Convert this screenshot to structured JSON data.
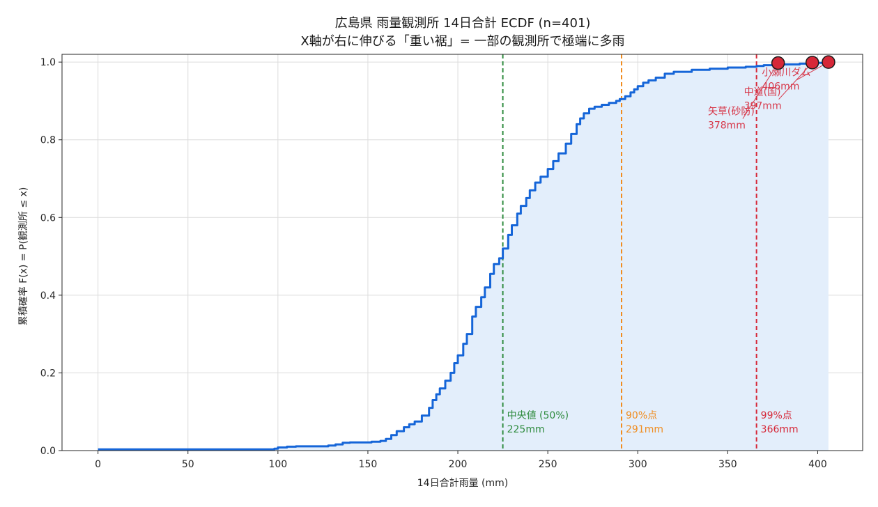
{
  "chart_data": {
    "type": "line",
    "title": "広島県 雨量観測所 14日合計 ECDF (n=401)",
    "subtitle": "X軸が右に伸びる「重い裾」= 一部の観測所で極端に多雨",
    "xlabel": "14日合計雨量 (mm)",
    "ylabel": "累積確率 F(x) = P(観測所 ≤ x)",
    "xlim": [
      -20,
      425
    ],
    "ylim": [
      0,
      1.02
    ],
    "x_ticks": [
      0,
      50,
      100,
      150,
      200,
      250,
      300,
      350,
      400
    ],
    "y_ticks": [
      0.0,
      0.2,
      0.4,
      0.6,
      0.8,
      1.0
    ],
    "x_tick_labels": [
      "0",
      "50",
      "100",
      "150",
      "200",
      "250",
      "300",
      "350",
      "400"
    ],
    "y_tick_labels": [
      "0.0",
      "0.2",
      "0.4",
      "0.6",
      "0.8",
      "1.0"
    ],
    "grid": true,
    "series": [
      {
        "color": "#1565d8",
        "fill_color": "#e3eefb",
        "x": [
          0,
          98,
          100,
          105,
          110,
          128,
          132,
          136,
          140,
          152,
          157,
          160,
          163,
          166,
          170,
          173,
          176,
          180,
          184,
          186,
          188,
          190,
          193,
          196,
          198,
          200,
          203,
          205,
          208,
          210,
          213,
          215,
          218,
          220,
          223,
          225,
          228,
          230,
          233,
          235,
          238,
          240,
          243,
          246,
          250,
          253,
          256,
          260,
          263,
          266,
          268,
          270,
          273,
          276,
          280,
          284,
          288,
          290,
          293,
          296,
          298,
          300,
          303,
          306,
          310,
          315,
          320,
          330,
          340,
          350,
          360,
          366,
          370,
          378,
          390,
          397,
          406
        ],
        "y": [
          0.003,
          0.005,
          0.008,
          0.01,
          0.011,
          0.013,
          0.016,
          0.02,
          0.021,
          0.023,
          0.025,
          0.03,
          0.04,
          0.05,
          0.06,
          0.068,
          0.075,
          0.09,
          0.11,
          0.13,
          0.145,
          0.16,
          0.18,
          0.2,
          0.225,
          0.245,
          0.275,
          0.3,
          0.345,
          0.37,
          0.395,
          0.42,
          0.455,
          0.48,
          0.495,
          0.52,
          0.555,
          0.58,
          0.61,
          0.63,
          0.65,
          0.67,
          0.69,
          0.705,
          0.725,
          0.745,
          0.765,
          0.79,
          0.815,
          0.84,
          0.855,
          0.868,
          0.88,
          0.885,
          0.89,
          0.895,
          0.9,
          0.905,
          0.912,
          0.922,
          0.93,
          0.938,
          0.947,
          0.953,
          0.96,
          0.97,
          0.975,
          0.98,
          0.983,
          0.986,
          0.988,
          0.99,
          0.992,
          0.994,
          0.996,
          0.998,
          1.0
        ]
      }
    ],
    "reference_lines": [
      {
        "x": 225,
        "label_top": "中央値 (50%)",
        "label_bottom": "225mm",
        "color": "#2e8b3e"
      },
      {
        "x": 291,
        "label_top": "90%点",
        "label_bottom": "291mm",
        "color": "#f08c1e"
      },
      {
        "x": 366,
        "label_top": "99%点",
        "label_bottom": "366mm",
        "color": "#d62838"
      }
    ],
    "annotations": [
      {
        "x": 378,
        "y": 0.9975,
        "label_top": "矢草(砂防)",
        "label_bottom": "378mm",
        "label_x": 339,
        "label_y": 0.865
      },
      {
        "x": 397,
        "y": 0.9988,
        "label_top": "中道(国)",
        "label_bottom": "397mm",
        "label_x": 359,
        "label_y": 0.915
      },
      {
        "x": 406,
        "y": 1.0,
        "label_top": "小瀬川ダム",
        "label_bottom": "406mm",
        "label_x": 369,
        "label_y": 0.965
      }
    ],
    "annotation_color": "#d7384a",
    "marker_color": "#d62838"
  }
}
